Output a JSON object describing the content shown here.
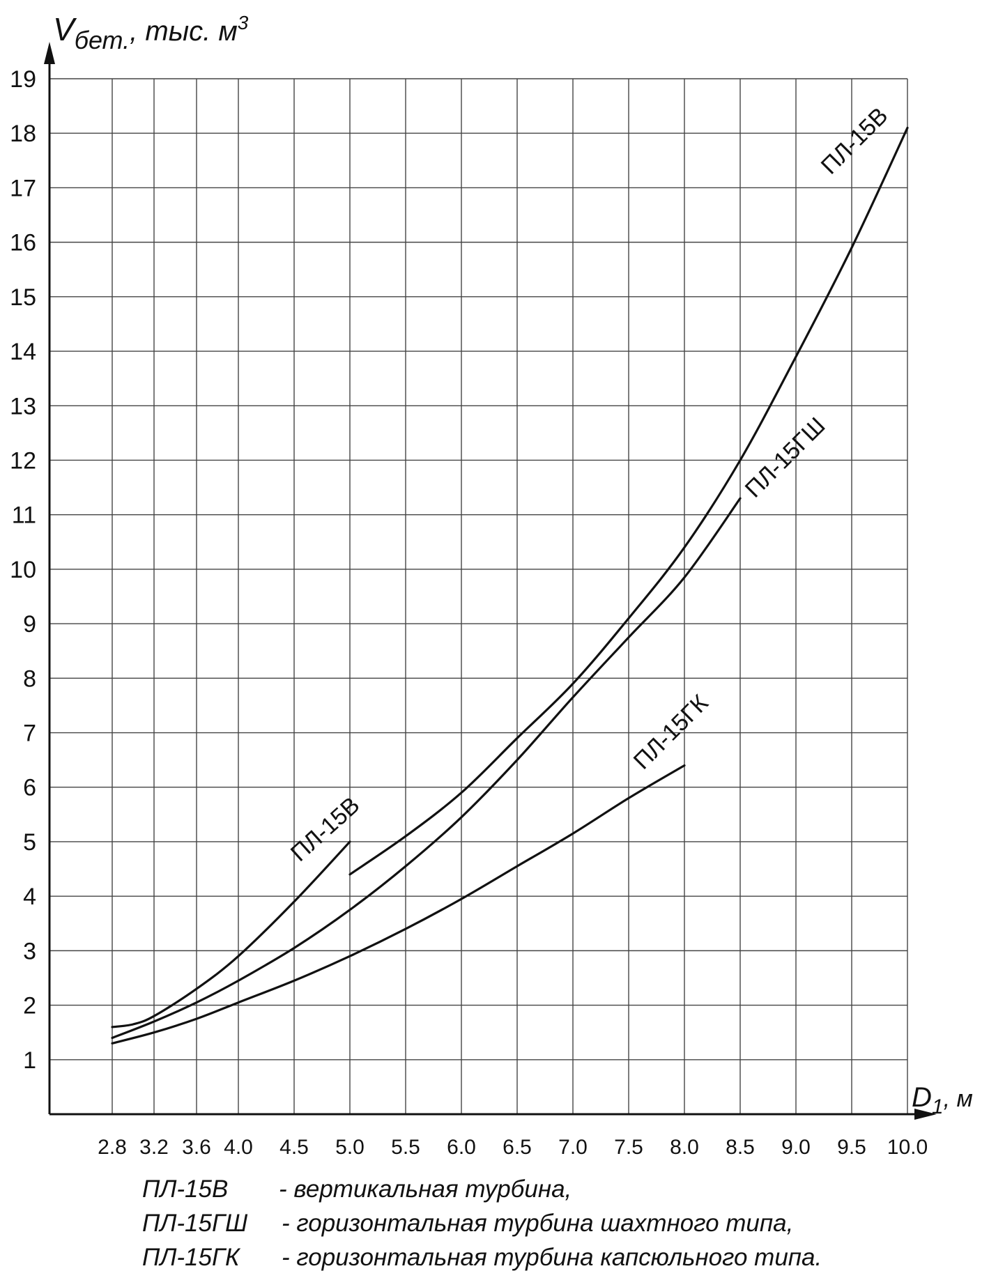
{
  "chart_data": {
    "type": "line",
    "ylabel_main": "V",
    "ylabel_sub": "бет.",
    "ylabel_rest": ", тыс. м",
    "ylabel_sup": "3",
    "xlabel_main": "D",
    "xlabel_sub": "1",
    "xlabel_rest": ", м",
    "x_ticks": [
      "2.8",
      "3.2",
      "3.6",
      "4.0",
      "4.5",
      "5.0",
      "5.5",
      "6.0",
      "6.5",
      "7.0",
      "7.5",
      "8.0",
      "8.5",
      "9.0",
      "9.5",
      "10.0"
    ],
    "y_ticks": [
      "1",
      "2",
      "3",
      "4",
      "5",
      "6",
      "7",
      "8",
      "9",
      "10",
      "11",
      "12",
      "13",
      "14",
      "15",
      "16",
      "17",
      "18",
      "19"
    ],
    "grid": true,
    "series": [
      {
        "name": "ПЛ-15В",
        "x": [
          2.8,
          3.0,
          3.2,
          3.6,
          4.0,
          4.5,
          5.0
        ],
        "y": [
          1.6,
          1.65,
          1.8,
          2.3,
          2.9,
          3.9,
          5.0
        ]
      },
      {
        "name": "ПЛ-15В",
        "x": [
          5.0,
          5.5,
          6.0,
          6.5,
          7.0,
          7.5,
          8.0,
          8.5,
          9.0,
          9.5,
          10.0
        ],
        "y": [
          4.4,
          5.1,
          5.9,
          6.9,
          7.9,
          9.1,
          10.4,
          12.0,
          13.9,
          15.9,
          18.1
        ]
      },
      {
        "name": "ПЛ-15ГШ",
        "x": [
          2.8,
          3.2,
          3.6,
          4.0,
          4.5,
          5.0,
          5.5,
          6.0,
          6.5,
          7.0,
          7.5,
          8.0,
          8.5
        ],
        "y": [
          1.4,
          1.7,
          2.05,
          2.45,
          3.05,
          3.75,
          4.55,
          5.45,
          6.5,
          7.65,
          8.75,
          9.85,
          11.3
        ]
      },
      {
        "name": "ПЛ-15ГК",
        "x": [
          2.8,
          3.2,
          3.6,
          4.0,
          4.5,
          5.0,
          5.5,
          6.0,
          6.5,
          7.0,
          7.5,
          8.0
        ],
        "y": [
          1.3,
          1.5,
          1.75,
          2.05,
          2.45,
          2.9,
          3.4,
          3.95,
          4.55,
          5.15,
          5.8,
          6.4
        ]
      }
    ]
  },
  "labels": {
    "pl15v_lower": "ПЛ-15В",
    "pl15v_upper": "ПЛ-15В",
    "pl15gsh": "ПЛ-15ГШ",
    "pl15gk": "ПЛ-15ГК"
  },
  "legend": [
    {
      "code": "ПЛ-15В",
      "text": "- вертикальная турбина,"
    },
    {
      "code": "ПЛ-15ГШ",
      "text": "- горизонтальная турбина шахтного типа,"
    },
    {
      "code": "ПЛ-15ГК",
      "text": "- горизонтальная турбина капсюльного типа."
    }
  ]
}
